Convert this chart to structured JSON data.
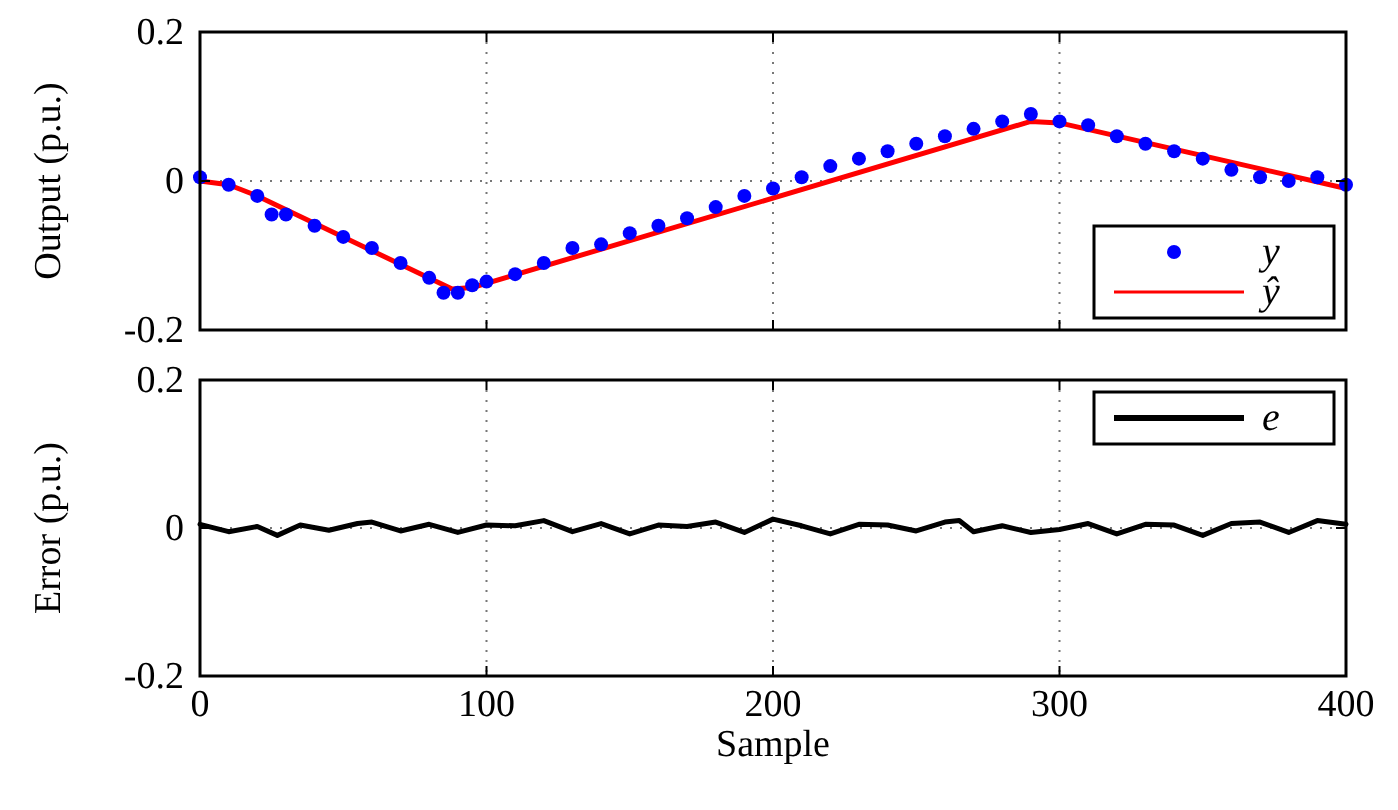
{
  "chart_data": [
    {
      "type": "line",
      "ylabel": "Output (p.u.)",
      "xlim": [
        0,
        400
      ],
      "xticks": [
        0,
        100,
        200,
        300,
        400
      ],
      "ylim": [
        -0.2,
        0.2
      ],
      "yticks": [
        -0.2,
        0,
        0.2
      ],
      "grid": true,
      "legend": "bottom right",
      "tick_labels": "y",
      "series": [
        {
          "name": "y",
          "type": "scatter",
          "color": "#0000ff",
          "x": [
            0,
            10,
            20,
            25,
            30,
            40,
            50,
            60,
            70,
            80,
            85,
            90,
            95,
            100,
            110,
            120,
            130,
            140,
            150,
            160,
            170,
            180,
            190,
            200,
            210,
            220,
            230,
            240,
            250,
            260,
            270,
            280,
            290,
            300,
            310,
            320,
            330,
            340,
            350,
            360,
            370,
            380,
            390,
            400
          ],
          "values": [
            0.005,
            -0.005,
            -0.02,
            -0.045,
            -0.045,
            -0.06,
            -0.075,
            -0.09,
            -0.11,
            -0.13,
            -0.15,
            -0.15,
            -0.14,
            -0.135,
            -0.125,
            -0.11,
            -0.09,
            -0.085,
            -0.07,
            -0.06,
            -0.05,
            -0.035,
            -0.02,
            -0.01,
            0.005,
            0.02,
            0.03,
            0.04,
            0.05,
            0.06,
            0.07,
            0.08,
            0.09,
            0.08,
            0.075,
            0.06,
            0.05,
            0.04,
            0.03,
            0.015,
            0.005,
            0,
            0.005,
            -0.005
          ]
        },
        {
          "name": "ŷ",
          "color": "#ff0000",
          "x": [
            0,
            10,
            20,
            88,
            95,
            290,
            300,
            400
          ],
          "values": [
            0,
            -0.005,
            -0.02,
            -0.145,
            -0.143,
            0.08,
            0.078,
            -0.01
          ]
        }
      ]
    },
    {
      "type": "line",
      "xlabel": "Sample",
      "ylabel": "Error (p.u.)",
      "xlim": [
        0,
        400
      ],
      "xticks": [
        0,
        100,
        200,
        300,
        400
      ],
      "ylim": [
        -0.2,
        0.2
      ],
      "yticks": [
        -0.2,
        0,
        0.2
      ],
      "grid": true,
      "legend": "top right",
      "series": [
        {
          "name": "e",
          "color": "#000000",
          "x": [
            0,
            10,
            20,
            27,
            35,
            45,
            55,
            60,
            70,
            80,
            90,
            100,
            110,
            120,
            130,
            140,
            150,
            160,
            170,
            180,
            190,
            200,
            210,
            220,
            230,
            240,
            250,
            260,
            265,
            270,
            280,
            290,
            300,
            310,
            320,
            330,
            340,
            350,
            360,
            370,
            380,
            390,
            400
          ],
          "values": [
            0.005,
            -0.005,
            0.002,
            -0.01,
            0.004,
            -0.003,
            0.006,
            0.008,
            -0.004,
            0.005,
            -0.006,
            0.004,
            0.003,
            0.01,
            -0.005,
            0.006,
            -0.008,
            0.004,
            0.002,
            0.008,
            -0.006,
            0.012,
            0.003,
            -0.008,
            0.005,
            0.004,
            -0.004,
            0.008,
            0.01,
            -0.005,
            0.003,
            -0.006,
            -0.002,
            0.006,
            -0.008,
            0.005,
            0.004,
            -0.01,
            0.006,
            0.008,
            -0.006,
            0.01,
            0.005
          ]
        }
      ]
    }
  ]
}
